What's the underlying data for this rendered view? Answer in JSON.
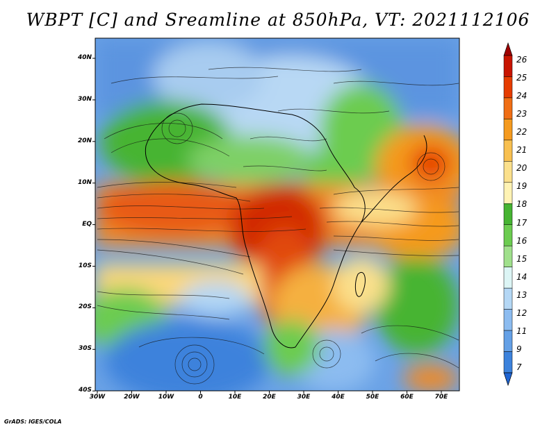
{
  "title": "WBPT [C] and Sreamline at 850hPa, VT: 2021112106",
  "credit": "GrADS: IGES/COLA",
  "map": {
    "lat_ticks": [
      "40N",
      "30N",
      "20N",
      "10N",
      "EQ",
      "10S",
      "20S",
      "30S",
      "40S"
    ],
    "lon_ticks": [
      "30W",
      "20W",
      "10W",
      "0",
      "10E",
      "20E",
      "30E",
      "40E",
      "50E",
      "60E",
      "70E"
    ],
    "lat_range": [
      -40,
      45
    ],
    "lon_range": [
      -30,
      76
    ]
  },
  "colorbar": {
    "labels": [
      "26",
      "25",
      "24",
      "23",
      "22",
      "21",
      "20",
      "19",
      "18",
      "17",
      "16",
      "15",
      "14",
      "13",
      "12",
      "11",
      "9",
      "7"
    ],
    "colors": [
      "#a00000",
      "#c81400",
      "#e63c00",
      "#f06e14",
      "#f59a1e",
      "#f8c050",
      "#fbe08c",
      "#fff3b4",
      "#46b432",
      "#6ccc50",
      "#a0e08c",
      "#dcf5f5",
      "#b4d7f5",
      "#8cbcf0",
      "#64a0e6",
      "#3c82dc",
      "#1e64d2"
    ]
  }
}
